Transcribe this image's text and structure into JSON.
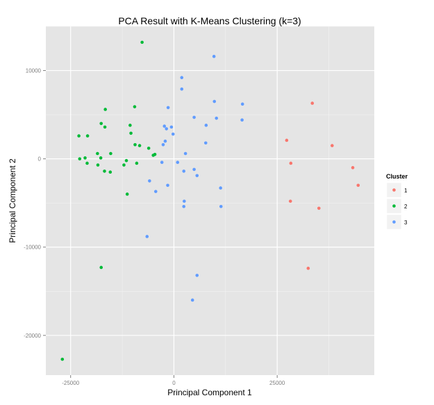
{
  "chart_data": {
    "type": "scatter",
    "title": "PCA Result with K-Means Clustering (k=3)",
    "xlabel": "Principal Component 1",
    "ylabel": "Principal Component 2",
    "xlim": [
      -31000,
      48500
    ],
    "ylim": [
      -24500,
      15000
    ],
    "x_ticks": [
      -25000,
      0,
      25000
    ],
    "y_ticks": [
      -20000,
      -10000,
      0,
      10000
    ],
    "x_tick_labels": [
      "-25000",
      "0",
      "25000"
    ],
    "y_tick_labels": [
      "-20000",
      "-10000",
      "0",
      "10000"
    ],
    "grid": true,
    "legend": {
      "title": "Cluster",
      "position": "right"
    },
    "colors": {
      "1": "#F8766D",
      "2": "#00BA38",
      "3": "#619CFF"
    },
    "series": [
      {
        "name": "1",
        "color": "#F8766D",
        "points": [
          [
            33500,
            6300
          ],
          [
            27300,
            2100
          ],
          [
            28300,
            -500
          ],
          [
            38300,
            1500
          ],
          [
            43300,
            -1000
          ],
          [
            44600,
            -3000
          ],
          [
            28200,
            -4800
          ],
          [
            35100,
            -5600
          ],
          [
            32500,
            -12400
          ]
        ]
      },
      {
        "name": "2",
        "color": "#00BA38",
        "points": [
          [
            -7700,
            13200
          ],
          [
            -16600,
            5600
          ],
          [
            -9500,
            5900
          ],
          [
            -17600,
            4000
          ],
          [
            -10600,
            3800
          ],
          [
            -16700,
            3600
          ],
          [
            -23000,
            2600
          ],
          [
            -20900,
            2600
          ],
          [
            -10400,
            2900
          ],
          [
            -9400,
            1600
          ],
          [
            -8300,
            1500
          ],
          [
            -6100,
            1200
          ],
          [
            -5000,
            400
          ],
          [
            -4600,
            500
          ],
          [
            -18500,
            600
          ],
          [
            -15300,
            600
          ],
          [
            -22800,
            0
          ],
          [
            -21500,
            100
          ],
          [
            -17700,
            100
          ],
          [
            -11500,
            -200
          ],
          [
            -21000,
            -500
          ],
          [
            -18400,
            -700
          ],
          [
            -12100,
            -700
          ],
          [
            -9000,
            -500
          ],
          [
            -16800,
            -1400
          ],
          [
            -15400,
            -1500
          ],
          [
            -11300,
            -4000
          ],
          [
            -17600,
            -12300
          ],
          [
            -27000,
            -22700
          ]
        ]
      },
      {
        "name": "3",
        "color": "#619CFF",
        "points": [
          [
            9700,
            11600
          ],
          [
            1900,
            9200
          ],
          [
            1900,
            7900
          ],
          [
            16600,
            6200
          ],
          [
            9800,
            6500
          ],
          [
            -1400,
            5800
          ],
          [
            4900,
            4700
          ],
          [
            10300,
            4600
          ],
          [
            16500,
            4400
          ],
          [
            -2300,
            3700
          ],
          [
            -1800,
            3400
          ],
          [
            -600,
            3600
          ],
          [
            7800,
            3800
          ],
          [
            -200,
            2800
          ],
          [
            -2100,
            2000
          ],
          [
            -2600,
            1600
          ],
          [
            7700,
            1800
          ],
          [
            2800,
            600
          ],
          [
            900,
            -400
          ],
          [
            -2900,
            -400
          ],
          [
            4900,
            -1200
          ],
          [
            2400,
            -1400
          ],
          [
            5600,
            -1900
          ],
          [
            -5900,
            -2500
          ],
          [
            -1500,
            -3000
          ],
          [
            11300,
            -3300
          ],
          [
            -4400,
            -3700
          ],
          [
            2500,
            -4800
          ],
          [
            2400,
            -5400
          ],
          [
            11400,
            -5400
          ],
          [
            -6500,
            -8800
          ],
          [
            5600,
            -13200
          ],
          [
            4500,
            -16000
          ]
        ]
      }
    ]
  }
}
